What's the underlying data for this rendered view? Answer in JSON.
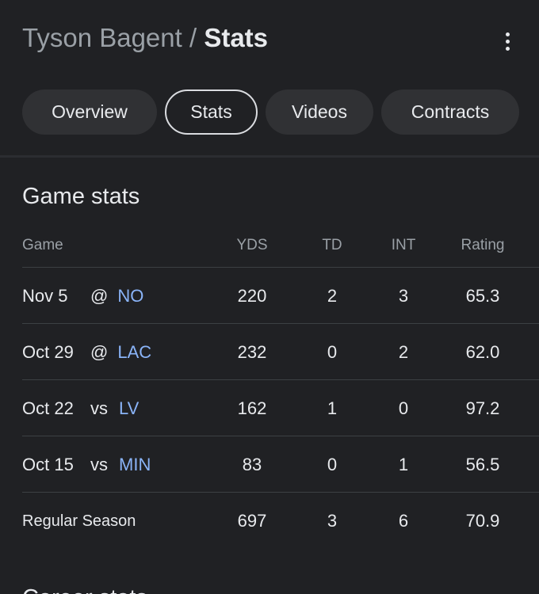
{
  "header": {
    "player_name": "Tyson Bagent",
    "separator": " / ",
    "section": "Stats"
  },
  "tabs": [
    {
      "label": "Overview",
      "active": false
    },
    {
      "label": "Stats",
      "active": true
    },
    {
      "label": "Videos",
      "active": false
    },
    {
      "label": "Contracts",
      "active": false
    }
  ],
  "game_stats": {
    "title": "Game stats",
    "columns": {
      "game": "Game",
      "yds": "YDS",
      "td": "TD",
      "int": "INT",
      "rating": "Rating"
    },
    "rows": [
      {
        "date": "Nov 5",
        "location": "@",
        "opponent": "NO",
        "yds": "220",
        "td": "2",
        "int": "3",
        "rating": "65.3"
      },
      {
        "date": "Oct 29",
        "location": "@",
        "opponent": "LAC",
        "yds": "232",
        "td": "0",
        "int": "2",
        "rating": "62.0"
      },
      {
        "date": "Oct 22",
        "location": "vs",
        "opponent": "LV",
        "yds": "162",
        "td": "1",
        "int": "0",
        "rating": "97.2"
      },
      {
        "date": "Oct 15",
        "location": "vs",
        "opponent": "MIN",
        "yds": "83",
        "td": "0",
        "int": "1",
        "rating": "56.5"
      }
    ],
    "total": {
      "label": "Regular Season",
      "yds": "697",
      "td": "3",
      "int": "6",
      "rating": "70.9"
    }
  },
  "next_section_title": "Career stats",
  "icons": {
    "more": "more-vert-icon"
  },
  "colors": {
    "background": "#202124",
    "chip": "#303134",
    "link": "#8ab4f8",
    "muted": "#9aa0a6"
  }
}
